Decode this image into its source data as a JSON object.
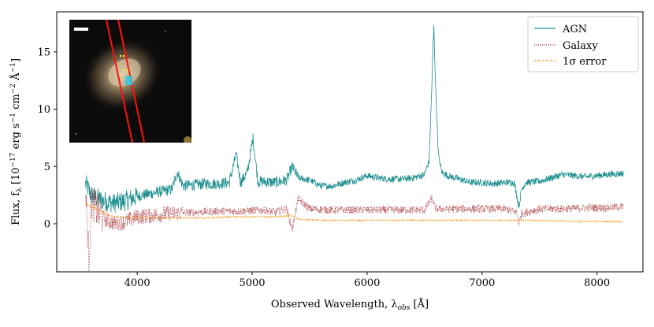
{
  "chart_data": {
    "type": "line",
    "title": "",
    "xlabel": "Observed Wavelength, λ_obs [Å]",
    "ylabel": "Flux, f_λ [10^-17 erg s^-1 cm^-2 Å^-1]",
    "xlim": [
      3300,
      8400
    ],
    "ylim": [
      -4.2,
      18.5
    ],
    "x_ticks": [
      4000,
      5000,
      6000,
      7000,
      8000
    ],
    "x_tick_labels": [
      "4000",
      "5000",
      "6000",
      "7000",
      "8000"
    ],
    "y_ticks": [
      0,
      5,
      10,
      15
    ],
    "y_tick_labels": [
      "0",
      "5",
      "10",
      "15"
    ],
    "grid": false,
    "legend_position": "top-right",
    "series": [
      {
        "name": "AGN",
        "color": "#1f8f8f",
        "style": "solid",
        "points": [
          [
            3550,
            3.5
          ],
          [
            3600,
            2.5
          ],
          [
            3700,
            2.0
          ],
          [
            3800,
            1.8
          ],
          [
            3900,
            2.0
          ],
          [
            4000,
            2.4
          ],
          [
            4100,
            2.6
          ],
          [
            4200,
            2.8
          ],
          [
            4300,
            3.0
          ],
          [
            4350,
            4.5
          ],
          [
            4400,
            3.3
          ],
          [
            4500,
            3.4
          ],
          [
            4600,
            3.5
          ],
          [
            4700,
            3.5
          ],
          [
            4800,
            3.6
          ],
          [
            4861,
            6.0
          ],
          [
            4900,
            3.6
          ],
          [
            4959,
            4.5
          ],
          [
            5007,
            7.5
          ],
          [
            5050,
            3.7
          ],
          [
            5200,
            3.6
          ],
          [
            5300,
            3.8
          ],
          [
            5350,
            5.0
          ],
          [
            5400,
            4.0
          ],
          [
            5500,
            3.8
          ],
          [
            5600,
            3.3
          ],
          [
            5700,
            3.3
          ],
          [
            5800,
            3.6
          ],
          [
            5900,
            3.8
          ],
          [
            6000,
            4.2
          ],
          [
            6100,
            4.0
          ],
          [
            6200,
            3.9
          ],
          [
            6300,
            3.9
          ],
          [
            6400,
            4.0
          ],
          [
            6500,
            4.3
          ],
          [
            6540,
            5.5
          ],
          [
            6563,
            12.0
          ],
          [
            6580,
            17.3
          ],
          [
            6600,
            11.0
          ],
          [
            6620,
            6.0
          ],
          [
            6650,
            4.5
          ],
          [
            6700,
            4.2
          ],
          [
            6800,
            3.9
          ],
          [
            6900,
            3.6
          ],
          [
            7000,
            3.6
          ],
          [
            7100,
            3.5
          ],
          [
            7200,
            3.6
          ],
          [
            7280,
            3.6
          ],
          [
            7300,
            2.6
          ],
          [
            7320,
            1.5
          ],
          [
            7345,
            3.0
          ],
          [
            7380,
            3.6
          ],
          [
            7500,
            3.7
          ],
          [
            7600,
            4.0
          ],
          [
            7700,
            4.3
          ],
          [
            7800,
            4.2
          ],
          [
            7900,
            4.1
          ],
          [
            8000,
            4.2
          ],
          [
            8100,
            4.3
          ],
          [
            8230,
            4.4
          ]
        ]
      },
      {
        "name": "Galaxy",
        "color": "#a0242a",
        "style": "dotted",
        "points": [
          [
            3550,
            3.0
          ],
          [
            3580,
            -3.0
          ],
          [
            3600,
            2.0
          ],
          [
            3700,
            0.5
          ],
          [
            3800,
            0.0
          ],
          [
            3900,
            0.2
          ],
          [
            4000,
            0.6
          ],
          [
            4100,
            0.7
          ],
          [
            4200,
            0.8
          ],
          [
            4300,
            0.9
          ],
          [
            4500,
            1.0
          ],
          [
            4700,
            1.1
          ],
          [
            4900,
            1.1
          ],
          [
            5100,
            1.2
          ],
          [
            5200,
            1.0
          ],
          [
            5300,
            1.3
          ],
          [
            5350,
            -0.5
          ],
          [
            5400,
            2.2
          ],
          [
            5500,
            1.3
          ],
          [
            5700,
            1.2
          ],
          [
            5900,
            1.2
          ],
          [
            6100,
            1.2
          ],
          [
            6300,
            1.2
          ],
          [
            6500,
            1.2
          ],
          [
            6563,
            2.2
          ],
          [
            6600,
            1.3
          ],
          [
            6800,
            1.3
          ],
          [
            7000,
            1.3
          ],
          [
            7200,
            1.3
          ],
          [
            7300,
            1.0
          ],
          [
            7320,
            0.0
          ],
          [
            7345,
            0.9
          ],
          [
            7500,
            1.3
          ],
          [
            7700,
            1.3
          ],
          [
            7900,
            1.4
          ],
          [
            8100,
            1.4
          ],
          [
            8230,
            1.5
          ]
        ]
      },
      {
        "name": "1σ error",
        "color": "#ff9922",
        "style": "dashed",
        "points": [
          [
            3550,
            1.7
          ],
          [
            3600,
            1.5
          ],
          [
            3700,
            1.0
          ],
          [
            3800,
            0.6
          ],
          [
            3900,
            0.5
          ],
          [
            4000,
            0.5
          ],
          [
            4200,
            0.5
          ],
          [
            4400,
            0.5
          ],
          [
            4600,
            0.5
          ],
          [
            4800,
            0.6
          ],
          [
            5000,
            0.6
          ],
          [
            5200,
            0.6
          ],
          [
            5350,
            0.7
          ],
          [
            5400,
            0.4
          ],
          [
            5600,
            0.3
          ],
          [
            5800,
            0.3
          ],
          [
            6000,
            0.3
          ],
          [
            6200,
            0.3
          ],
          [
            6400,
            0.3
          ],
          [
            6600,
            0.3
          ],
          [
            6800,
            0.3
          ],
          [
            7000,
            0.3
          ],
          [
            7200,
            0.3
          ],
          [
            7400,
            0.3
          ],
          [
            7600,
            0.25
          ],
          [
            7800,
            0.2
          ],
          [
            8000,
            0.2
          ],
          [
            8230,
            0.2
          ]
        ]
      }
    ],
    "legend": [
      {
        "label": "AGN",
        "series": 0
      },
      {
        "label": "Galaxy",
        "series": 1
      },
      {
        "label": "1σ error",
        "series": 2
      }
    ],
    "inset": {
      "description": "galaxy image with slit",
      "slit_color": "#ff1010",
      "marker_color": "#ffee22",
      "highlight_color": "#30c8e0"
    }
  }
}
